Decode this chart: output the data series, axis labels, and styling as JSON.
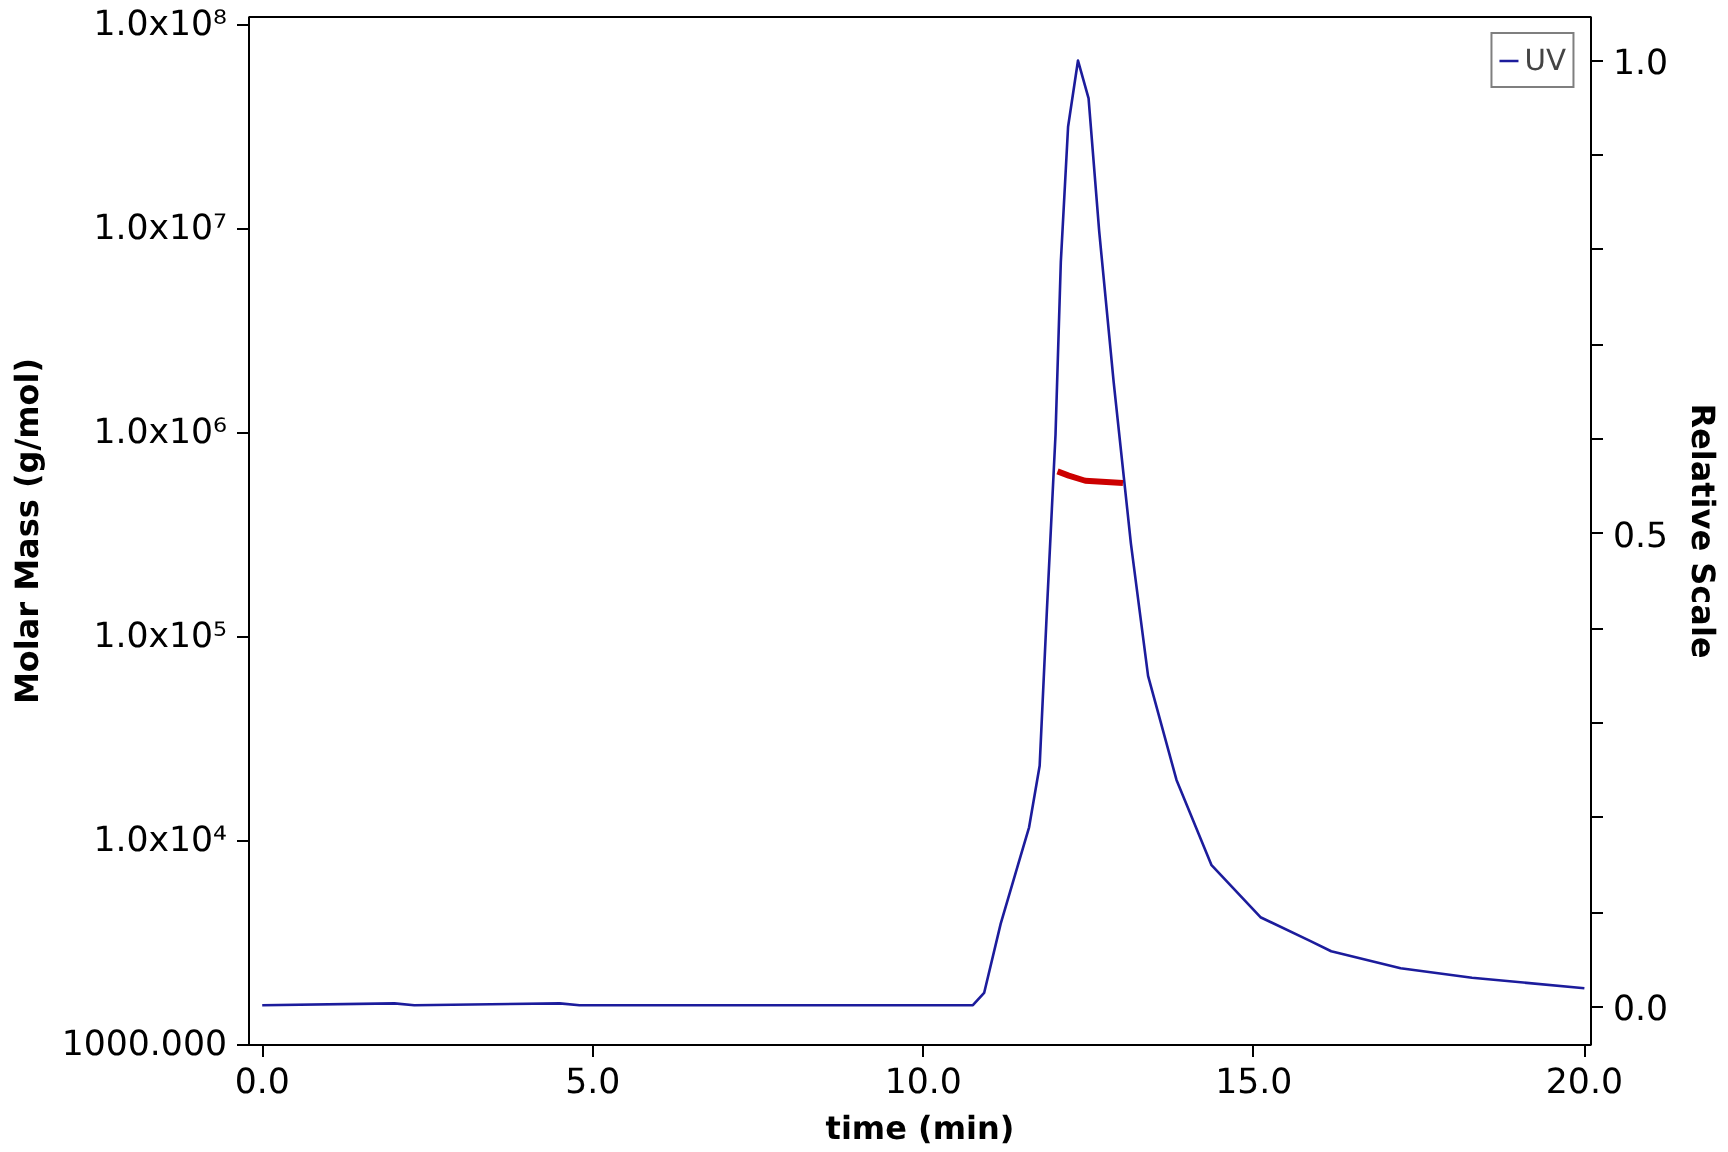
{
  "chart_data": {
    "type": "line",
    "xlabel": "time (min)",
    "ylabel": "Molar Mass (g/mol)",
    "y2label": "Relative Scale",
    "xlim": [
      -0.2,
      20.1
    ],
    "xticks": [
      {
        "value": 0,
        "label": "0.0"
      },
      {
        "value": 5,
        "label": "5.0"
      },
      {
        "value": 10,
        "label": "10.0"
      },
      {
        "value": 15,
        "label": "15.0"
      },
      {
        "value": 20,
        "label": "20.0"
      }
    ],
    "ylim": [
      1000,
      110000000
    ],
    "log": "y",
    "yticks": [
      {
        "value": 1000,
        "label": "1000.000"
      },
      {
        "value": 10000,
        "label": "1.0x10⁴"
      },
      {
        "value": 100000,
        "label": "1.0x10⁵"
      },
      {
        "value": 1000000,
        "label": "1.0x10⁶"
      },
      {
        "value": 10000000,
        "label": "1.0x10⁷"
      },
      {
        "value": 100000000,
        "label": "1.0x10⁸"
      }
    ],
    "y2lim": [
      -0.04,
      1.046
    ],
    "y2ticks": [
      {
        "value": 0,
        "label": "0.0"
      },
      {
        "value": 0.1,
        "label": null
      },
      {
        "value": 0.2,
        "label": null
      },
      {
        "value": 0.3,
        "label": null
      },
      {
        "value": 0.4,
        "label": null
      },
      {
        "value": 0.5,
        "label": "0.5"
      },
      {
        "value": 0.6,
        "label": null
      },
      {
        "value": 0.7,
        "label": null
      },
      {
        "value": 0.8,
        "label": null
      },
      {
        "value": 0.9,
        "label": null
      },
      {
        "value": 1.0,
        "label": "1.0"
      }
    ],
    "grid": false,
    "legend": "top right",
    "line_style": "solid",
    "marker": "none",
    "series": [
      {
        "name": "UV",
        "color": "#1c1c9c",
        "axis": "y2",
        "x": [
          0,
          2,
          2.3,
          4.5,
          4.8,
          10.75,
          10.92,
          11.17,
          11.6,
          11.76,
          11.87,
          12.0,
          12.08,
          12.19,
          12.34,
          12.5,
          12.66,
          12.88,
          13.14,
          13.4,
          13.83,
          14.36,
          15.1,
          15.85,
          16.17,
          17.22,
          18.3,
          20.0
        ],
        "values": [
          0.002,
          0.004,
          0.002,
          0.004,
          0.002,
          0.002,
          0.015,
          0.088,
          0.19,
          0.255,
          0.42,
          0.605,
          0.787,
          0.93,
          1.0,
          0.96,
          0.82,
          0.66,
          0.49,
          0.35,
          0.24,
          0.15,
          0.095,
          0.07,
          0.059,
          0.041,
          0.031,
          0.02
        ]
      },
      {
        "color": "#cc0000",
        "axis": "y",
        "x": [
          12.03,
          12.2,
          12.45,
          13.02
        ],
        "values": [
          650000,
          620000,
          585000,
          570000
        ]
      }
    ]
  }
}
